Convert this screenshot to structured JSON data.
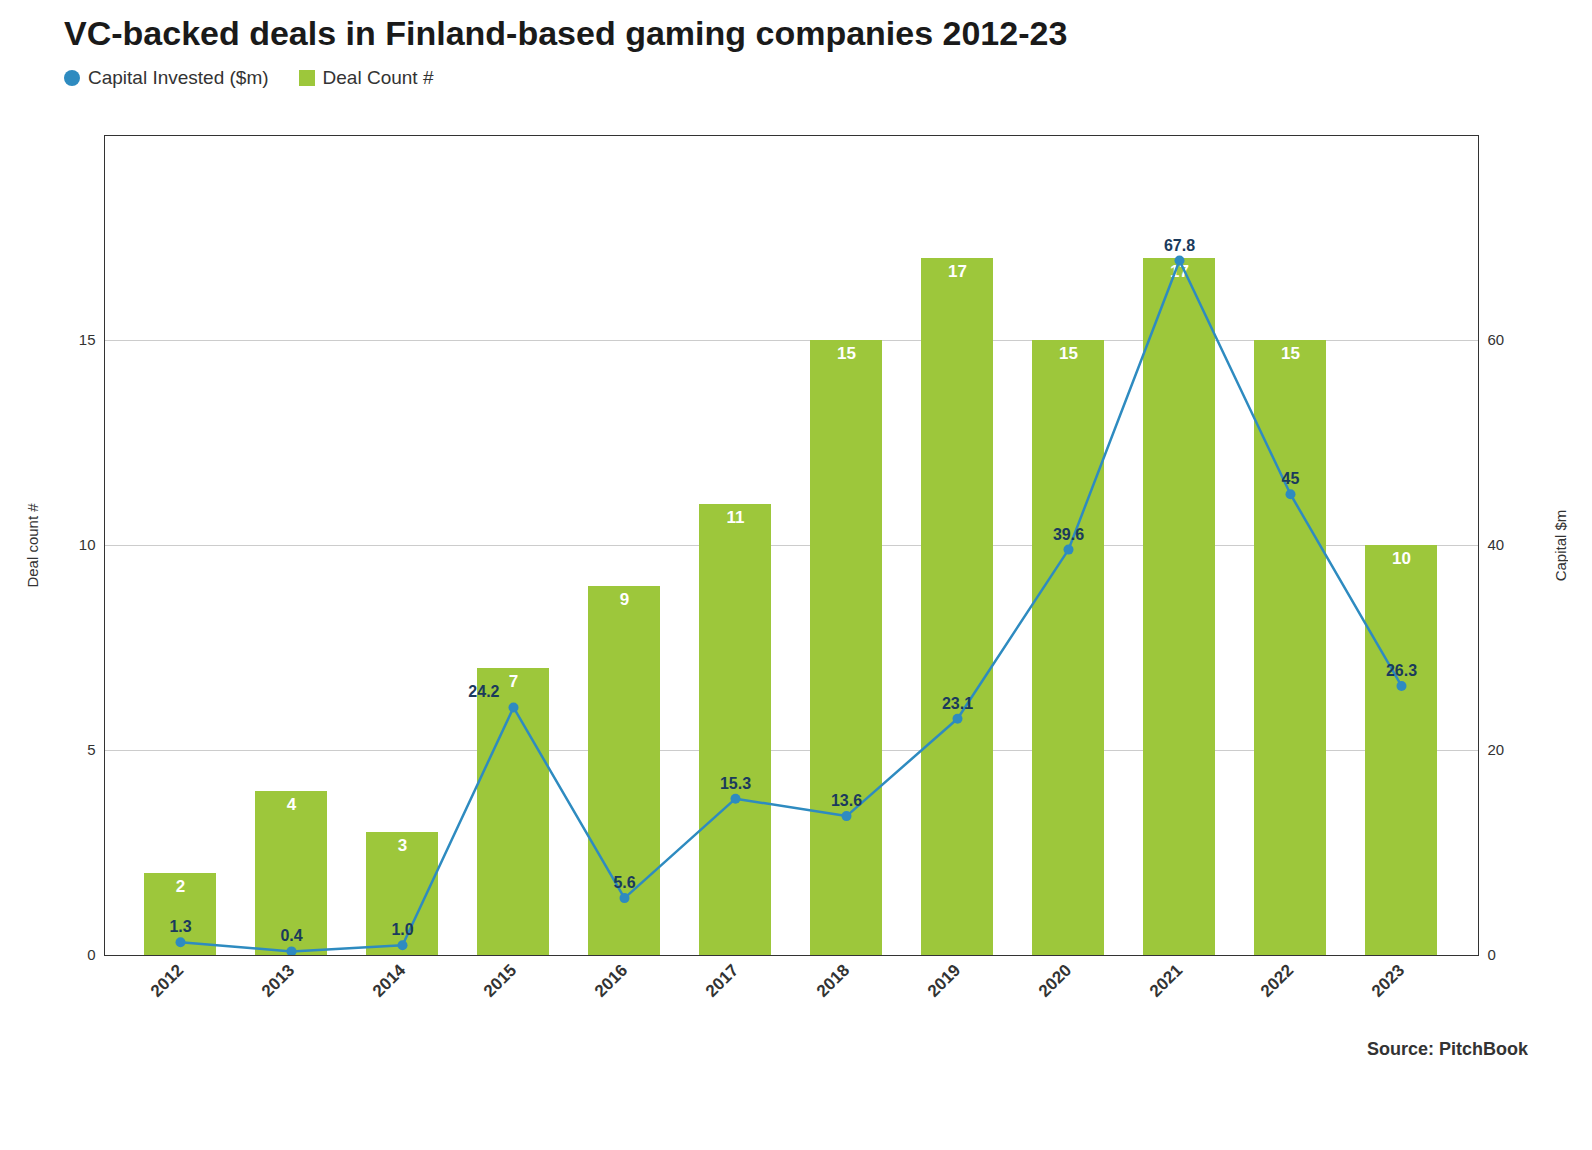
{
  "chart_data": {
    "type": "bar",
    "title": "VC-backed deals in Finland-based gaming companies 2012-23",
    "categories": [
      "2012",
      "2013",
      "2014",
      "2015",
      "2016",
      "2017",
      "2018",
      "2019",
      "2020",
      "2021",
      "2022",
      "2023"
    ],
    "series": [
      {
        "name": "Capital Invested ($m)",
        "type": "line",
        "axis": "y2",
        "color": "#2e8bc0",
        "marker": "circle",
        "values": [
          1.3,
          0.4,
          1.0,
          24.2,
          5.6,
          15.3,
          13.6,
          23.1,
          39.6,
          67.8,
          45.0,
          26.3
        ],
        "value_labels": [
          "1.3",
          "0.4",
          "1.0",
          "24.2",
          "5.6",
          "15.3",
          "13.6",
          "23.1",
          "39.6",
          "67.8",
          "45",
          "26.3"
        ]
      },
      {
        "name": "Deal Count #",
        "type": "bar",
        "color": "#9dc73b",
        "values": [
          2,
          4,
          3,
          7,
          9,
          11,
          15,
          17,
          15,
          17,
          15,
          10
        ]
      }
    ],
    "ylabel": "Deal count #",
    "y2label": "Capital $m",
    "ylim": [
      0,
      20
    ],
    "yticks": [
      0,
      5,
      10,
      15
    ],
    "y2lim": [
      0,
      80
    ],
    "y2ticks": [
      0,
      20,
      40,
      60
    ],
    "grid": true,
    "legend": "top",
    "data_labels": true,
    "annotations": [
      "Source: PitchBook"
    ]
  }
}
